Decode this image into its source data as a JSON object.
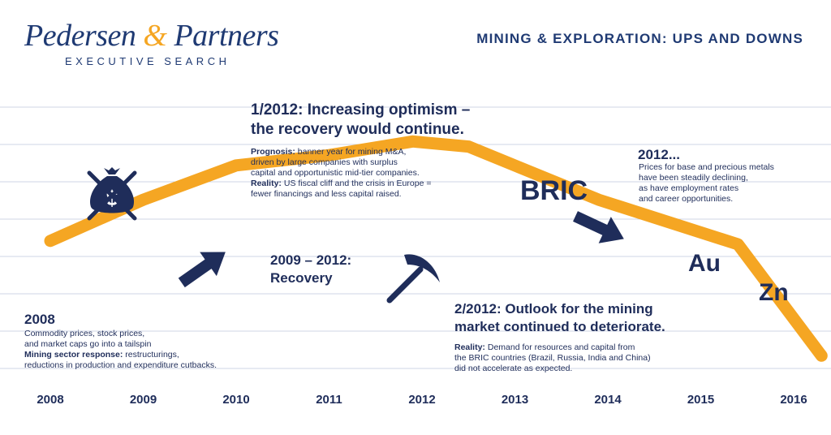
{
  "header": {
    "logo_name_1": "Pedersen ",
    "logo_amp": "&",
    "logo_name_2": " Partners",
    "logo_tagline": "EXECUTIVE SEARCH",
    "headline": "MINING & EXPLORATION: UPS AND DOWNS"
  },
  "chart_data": {
    "type": "line",
    "categories": [
      "2008",
      "2009",
      "2010",
      "2011",
      "2012",
      "2013",
      "2014",
      "2015",
      "2016"
    ],
    "series": [
      {
        "values": [
          0.22,
          0.46,
          0.66,
          0.72,
          0.8,
          0.77,
          0.46,
          0.2,
          -0.45
        ]
      }
    ],
    "x": [
      2008.0,
      2009.0,
      2010.0,
      2011.0,
      2011.9,
      2012.5,
      2013.9,
      2015.4,
      2016.3
    ],
    "ylim": [
      -0.6,
      1.0
    ],
    "grid": true,
    "line_color": "#f5a623"
  },
  "annotations": {
    "a2008": {
      "title": "2008",
      "line1": "Commodity prices, stock prices,",
      "line2": "and market caps go into a tailspin",
      "label": "Mining sector response:",
      "line3": " restructurings,",
      "line4": "reductions in production and expenditure cutbacks."
    },
    "recovery": {
      "line1": "2009 – 2012:",
      "line2": "Recovery"
    },
    "jan2012": {
      "title1": "1/2012: Increasing optimism –",
      "title2": "the recovery would continue.",
      "prog_label": "Prognosis:",
      "prog1": " banner year for mining M&A,",
      "prog2": "driven by large companies  with surplus",
      "prog3": "capital and opportunistic mid-tier companies.",
      "real_label": "Reality:",
      "real1": " US fiscal cliff and the crisis  in Europe =",
      "real2": "fewer financings and less capital raised."
    },
    "feb2012": {
      "title1": "2/2012: Outlook for the mining",
      "title2": "market continued to deteriorate.",
      "real_label": "Reality:",
      "real1": " Demand for resources and capital from",
      "real2": "the BRIC countries (Brazil, Russia, India and China)",
      "real3": "did not accelerate as expected."
    },
    "y2012": {
      "title": "2012...",
      "line1": "Prices for base and precious metals",
      "line2": "have been steadily declining,",
      "line3": "as have employment rates",
      "line4": "and career opportunities."
    }
  },
  "labels": {
    "bric": "BRIC",
    "au": "Au",
    "zn": "Zn",
    "money_symbol": "$"
  },
  "icons": [
    "crossed-money-bag-icon",
    "pickaxe-icon",
    "arrow-icon"
  ],
  "colors": {
    "navy": "#1f2d5a",
    "orange": "#f5a623",
    "grid": "#cfd6e6"
  }
}
